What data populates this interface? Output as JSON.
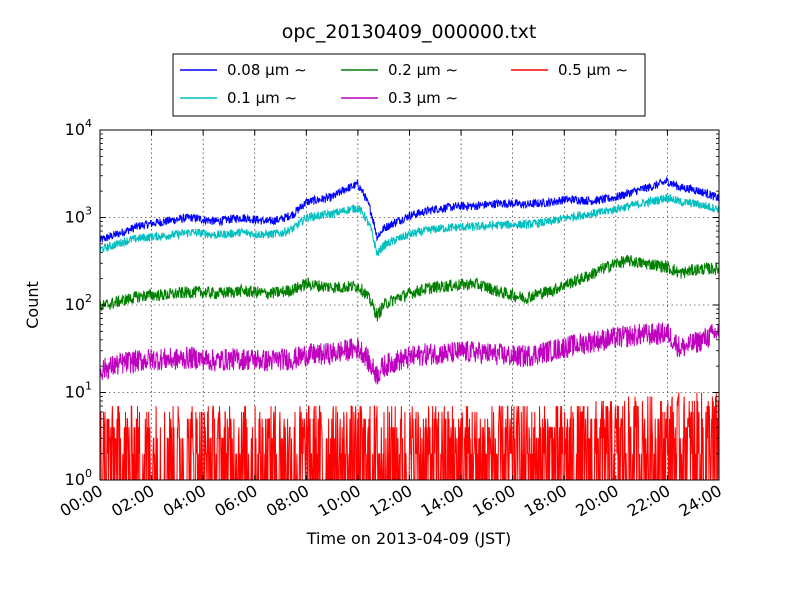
{
  "chart_data": {
    "type": "line",
    "title": "opc_20130409_000000.txt",
    "xlabel": "Time on 2013-04-09 (JST)",
    "ylabel": "Count",
    "y_scale": "log",
    "ylim": [
      1,
      10000
    ],
    "xlim": [
      "00:00",
      "24:00"
    ],
    "x_ticks": [
      "00:00",
      "02:00",
      "04:00",
      "06:00",
      "08:00",
      "10:00",
      "12:00",
      "14:00",
      "16:00",
      "18:00",
      "20:00",
      "22:00",
      "24:00"
    ],
    "y_ticks": [
      {
        "value": 1,
        "base": "10",
        "exp": "0"
      },
      {
        "value": 10,
        "base": "10",
        "exp": "1"
      },
      {
        "value": 100,
        "base": "10",
        "exp": "2"
      },
      {
        "value": 1000,
        "base": "10",
        "exp": "3"
      },
      {
        "value": 10000,
        "base": "10",
        "exp": "4"
      }
    ],
    "grid": true,
    "legend_position": "top",
    "x_hours": [
      0,
      0.5,
      1,
      1.5,
      2,
      2.5,
      3,
      3.5,
      4,
      4.5,
      5,
      5.5,
      6,
      6.5,
      7,
      7.5,
      8,
      8.5,
      9,
      9.5,
      10,
      10.25,
      10.5,
      10.75,
      11,
      11.5,
      12,
      12.5,
      13,
      13.5,
      14,
      14.5,
      15,
      15.5,
      16,
      16.5,
      17,
      17.5,
      18,
      18.5,
      19,
      19.5,
      20,
      20.5,
      21,
      21.5,
      22,
      22.5,
      23,
      23.5,
      24
    ],
    "series": [
      {
        "name": "0.08 μm ∼",
        "color": "#0000ff",
        "noise": 0.05,
        "values": [
          550,
          620,
          700,
          800,
          850,
          900,
          950,
          1000,
          950,
          900,
          950,
          1000,
          950,
          900,
          950,
          1100,
          1500,
          1600,
          1700,
          2100,
          2400,
          1800,
          1200,
          600,
          750,
          900,
          1050,
          1150,
          1250,
          1300,
          1350,
          1350,
          1400,
          1450,
          1450,
          1400,
          1450,
          1500,
          1600,
          1600,
          1550,
          1600,
          1700,
          1900,
          2100,
          2300,
          2600,
          2200,
          2100,
          1900,
          1650
        ]
      },
      {
        "name": "0.1 μm ∼",
        "color": "#00bfbf",
        "noise": 0.05,
        "values": [
          430,
          480,
          540,
          580,
          600,
          620,
          640,
          680,
          660,
          630,
          650,
          680,
          650,
          640,
          660,
          750,
          1000,
          1050,
          1100,
          1200,
          1300,
          1050,
          750,
          380,
          480,
          560,
          640,
          690,
          740,
          760,
          780,
          780,
          800,
          820,
          830,
          830,
          860,
          900,
          980,
          1050,
          1100,
          1150,
          1250,
          1350,
          1450,
          1550,
          1700,
          1500,
          1450,
          1350,
          1250
        ]
      },
      {
        "name": "0.2 μm ∼",
        "color": "#008000",
        "noise": 0.07,
        "values": [
          95,
          105,
          115,
          125,
          130,
          130,
          135,
          140,
          140,
          135,
          140,
          145,
          140,
          135,
          140,
          150,
          175,
          165,
          160,
          160,
          165,
          140,
          110,
          75,
          100,
          120,
          135,
          150,
          160,
          165,
          170,
          175,
          160,
          140,
          130,
          120,
          135,
          145,
          170,
          190,
          220,
          260,
          300,
          320,
          300,
          290,
          270,
          230,
          250,
          260,
          260
        ]
      },
      {
        "name": "0.3 μm ∼",
        "color": "#bf00bf",
        "noise": 0.13,
        "values": [
          18,
          20,
          22,
          23,
          24,
          24,
          24,
          25,
          24,
          23,
          24,
          24,
          24,
          23,
          24,
          24,
          27,
          27,
          28,
          30,
          32,
          28,
          20,
          16,
          20,
          23,
          25,
          27,
          28,
          28,
          29,
          29,
          28,
          27,
          26,
          26,
          28,
          30,
          33,
          35,
          38,
          40,
          42,
          44,
          46,
          46,
          48,
          32,
          36,
          42,
          50
        ]
      },
      {
        "name": "0.5 μm ∼",
        "color": "#ff0000",
        "noise": 0,
        "values": [
          2.5,
          2.5,
          2.5,
          2.5,
          2.5,
          2.5,
          2.5,
          2.5,
          2.5,
          2.5,
          2.5,
          2.5,
          2.5,
          2.5,
          2.5,
          2.5,
          2.5,
          2.5,
          2.5,
          2.5,
          2.5,
          2.5,
          2.5,
          2.5,
          2.5,
          2.5,
          2.5,
          2.5,
          2.5,
          2.5,
          2.5,
          2.5,
          2.5,
          2.5,
          2.5,
          2.5,
          2.5,
          2.5,
          2.5,
          2.5,
          2.7,
          2.8,
          2.9,
          3,
          3,
          3,
          3.1,
          3.2,
          3.2,
          3.3,
          3.4
        ]
      }
    ]
  }
}
